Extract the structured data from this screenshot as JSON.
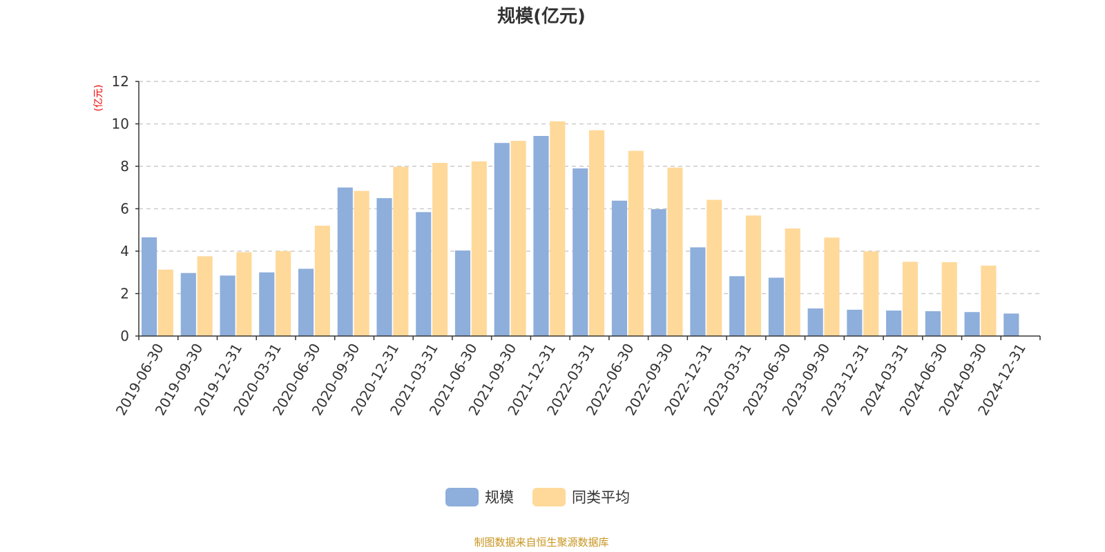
{
  "chart_data": {
    "type": "bar",
    "title": "规模(亿元)",
    "ylabel": "(亿元)",
    "xlabel": "",
    "ylim": [
      0,
      12
    ],
    "yticks": [
      0,
      2,
      4,
      6,
      8,
      10,
      12
    ],
    "grid": true,
    "legend_position": "bottom",
    "categories": [
      "2019-06-30",
      "2019-09-30",
      "2019-12-31",
      "2020-03-31",
      "2020-06-30",
      "2020-09-30",
      "2020-12-31",
      "2021-03-31",
      "2021-06-30",
      "2021-09-30",
      "2021-12-31",
      "2022-03-31",
      "2022-06-30",
      "2022-09-30",
      "2022-12-31",
      "2023-03-31",
      "2023-06-30",
      "2023-09-30",
      "2023-12-31",
      "2024-03-31",
      "2024-06-30",
      "2024-09-30",
      "2024-12-31"
    ],
    "series": [
      {
        "name": "规模",
        "color": "#8eaedb",
        "values": [
          4.65,
          2.97,
          2.85,
          3.0,
          3.17,
          7.0,
          6.5,
          5.84,
          4.03,
          9.1,
          9.43,
          7.9,
          6.38,
          5.98,
          4.18,
          2.82,
          2.75,
          1.3,
          1.24,
          1.2,
          1.17,
          1.13,
          1.06
        ]
      },
      {
        "name": "同类平均",
        "color": "#ffd99a",
        "values": [
          3.13,
          3.76,
          3.95,
          4.0,
          5.2,
          6.84,
          7.98,
          8.16,
          8.23,
          9.2,
          10.12,
          9.7,
          8.73,
          7.94,
          6.42,
          5.68,
          5.07,
          4.64,
          3.99,
          3.5,
          3.48,
          3.32,
          null
        ]
      }
    ]
  },
  "footer": "制图数据来自恒生聚源数据库"
}
